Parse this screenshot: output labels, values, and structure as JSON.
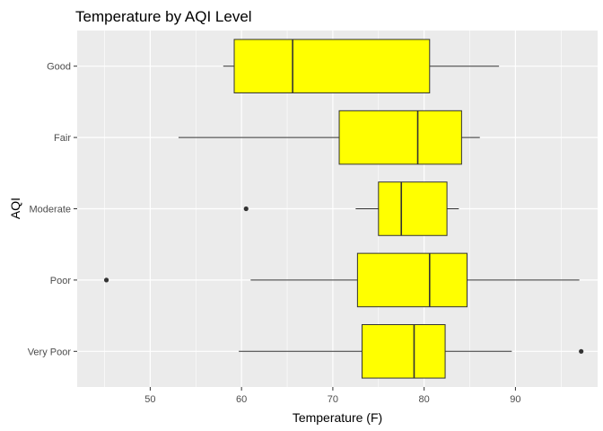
{
  "chart_data": {
    "type": "boxplot",
    "orientation": "horizontal",
    "title": "Temperature by AQI Level",
    "xlabel": "Temperature (F)",
    "ylabel": "AQI",
    "xlim": [
      42,
      99
    ],
    "xticks": [
      50,
      60,
      70,
      80,
      90
    ],
    "grid": true,
    "legend": "none",
    "colors": {
      "box_fill": "#FFFF00",
      "box_stroke": "#333333",
      "panel_bg": "#EBEBEB",
      "grid": "#FFFFFF",
      "outlier": "#333333"
    },
    "categories": [
      "Good",
      "Fair",
      "Moderate",
      "Poor",
      "Very Poor"
    ],
    "boxes": [
      {
        "category": "Good",
        "min": 58,
        "q1": 59.2,
        "median": 65.6,
        "q3": 80.6,
        "max": 88.2,
        "outliers": []
      },
      {
        "category": "Fair",
        "min": 53.1,
        "q1": 70.7,
        "median": 79.3,
        "q3": 84.1,
        "max": 86.1,
        "outliers": []
      },
      {
        "category": "Moderate",
        "min": 72.5,
        "q1": 75.0,
        "median": 77.5,
        "q3": 82.5,
        "max": 83.8,
        "outliers": [
          60.5
        ]
      },
      {
        "category": "Poor",
        "min": 61.0,
        "q1": 72.7,
        "median": 80.6,
        "q3": 84.7,
        "max": 97.0,
        "outliers": [
          45.2
        ]
      },
      {
        "category": "Very Poor",
        "min": 59.7,
        "q1": 73.2,
        "median": 78.9,
        "q3": 82.3,
        "max": 89.6,
        "outliers": [
          97.2
        ]
      }
    ]
  }
}
